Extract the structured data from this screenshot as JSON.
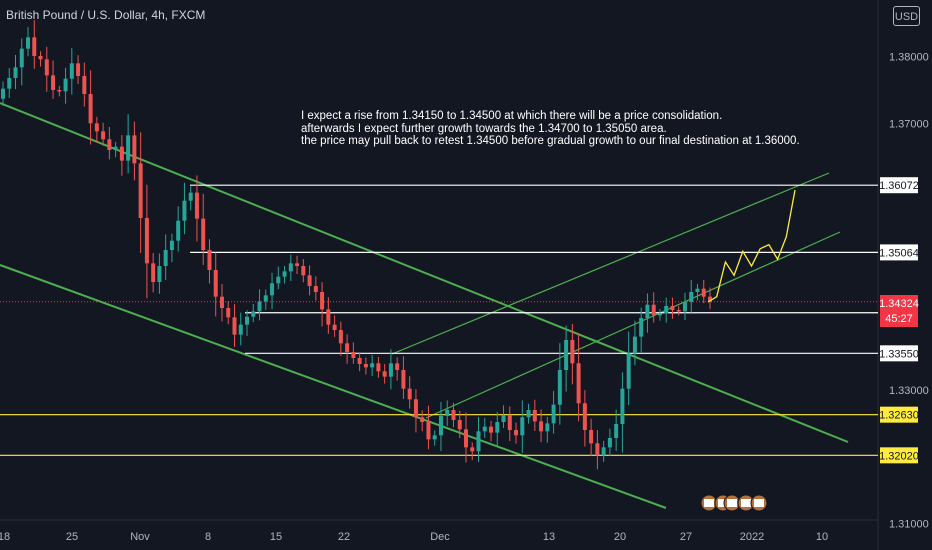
{
  "header": {
    "symbol_title": "British Pound / U.S. Dollar, 4h, FXCM",
    "currency": "USD"
  },
  "annotation": {
    "lines": [
      "I expect a rise from 1.34150 to 1.34500 at which there will be a price consolidation.",
      "afterwards I expect further growth towards the 1.34700 to 1.35050 area.",
      "the price may pull back to retest 1.34500 before gradual growth to our final destination at 1.36000."
    ]
  },
  "chart_data": {
    "type": "line",
    "title": "British Pound / U.S. Dollar, 4h, FXCM",
    "xlabel": "",
    "ylabel": "",
    "x_ticks": [
      "18",
      "25",
      "Nov",
      "8",
      "15",
      "22",
      "Dec",
      "13",
      "20",
      "27",
      "2022",
      "10"
    ],
    "y_ticks": [
      "1.38000",
      "1.37000",
      "1.33000",
      "1.31000"
    ],
    "ylim": [
      1.3087,
      1.3876
    ],
    "grid": false,
    "legend": "none",
    "current_price": {
      "value": "1.34324",
      "countdown": "45:27",
      "color": "#f23645"
    },
    "horizontal_levels": [
      {
        "value": 1.36072,
        "label": "1.36072",
        "color": "#ffffff"
      },
      {
        "value": 1.35064,
        "label": "1.35064",
        "color": "#ffffff"
      },
      {
        "value": 1.34159,
        "label": "1.34159",
        "color": "#ffffff"
      },
      {
        "value": 1.3355,
        "label": "1.33550",
        "color": "#ffffff"
      },
      {
        "value": 1.3263,
        "label": "1.32630",
        "color": "#ffeb3b"
      },
      {
        "value": 1.3202,
        "label": "1.32020",
        "color": "#ffeb3b"
      }
    ],
    "series": [
      {
        "values": [
          1.3752,
          1.3768,
          1.3784,
          1.3812,
          1.3829,
          1.3801,
          1.3796,
          1.3772,
          1.375,
          1.3748,
          1.3767,
          1.379,
          1.3771,
          1.3744,
          1.37,
          1.3688,
          1.3676,
          1.366,
          1.3665,
          1.3644,
          1.3682,
          1.364,
          1.3558,
          1.349,
          1.3462,
          1.3486,
          1.351,
          1.3524,
          1.3554,
          1.3584,
          1.3596,
          1.3557,
          1.351,
          1.348,
          1.344,
          1.3423,
          1.3409,
          1.3383,
          1.3398,
          1.341,
          1.3418,
          1.3433,
          1.3442,
          1.346,
          1.347,
          1.3478,
          1.349,
          1.3486,
          1.3472,
          1.3456,
          1.3447,
          1.3421,
          1.3398,
          1.339,
          1.337,
          1.3357,
          1.3348,
          1.3339,
          1.3334,
          1.334,
          1.3328,
          1.332,
          1.334,
          1.333,
          1.3302,
          1.3286,
          1.3259,
          1.3252,
          1.3226,
          1.3232,
          1.3261,
          1.327,
          1.3255,
          1.3241,
          1.3214,
          1.3208,
          1.3238,
          1.3245,
          1.3236,
          1.3252,
          1.3262,
          1.324,
          1.3232,
          1.3259,
          1.327,
          1.3253,
          1.3238,
          1.325,
          1.3278,
          1.333,
          1.3375,
          1.334,
          1.328,
          1.324,
          1.322,
          1.3202,
          1.3214,
          1.3228,
          1.3249,
          1.3302,
          1.3355,
          1.338,
          1.3408,
          1.3428,
          1.3412,
          1.3415,
          1.3426,
          1.342,
          1.3418,
          1.3432,
          1.3447,
          1.3452,
          1.344,
          1.3432
        ]
      },
      {
        "name": "",
        "values": [
          1.3432,
          1.344,
          1.3492,
          1.3472,
          1.3508,
          1.3486,
          1.3512,
          1.3518,
          1.3496,
          1.353,
          1.36
        ]
      }
    ]
  },
  "colors": {
    "background": "#131722",
    "up_candle": "#26a69a",
    "down_candle": "#ef5350",
    "channel_lines": "#4caf50",
    "projection": "#ffeb3b",
    "axis_text": "#b2b5be"
  }
}
